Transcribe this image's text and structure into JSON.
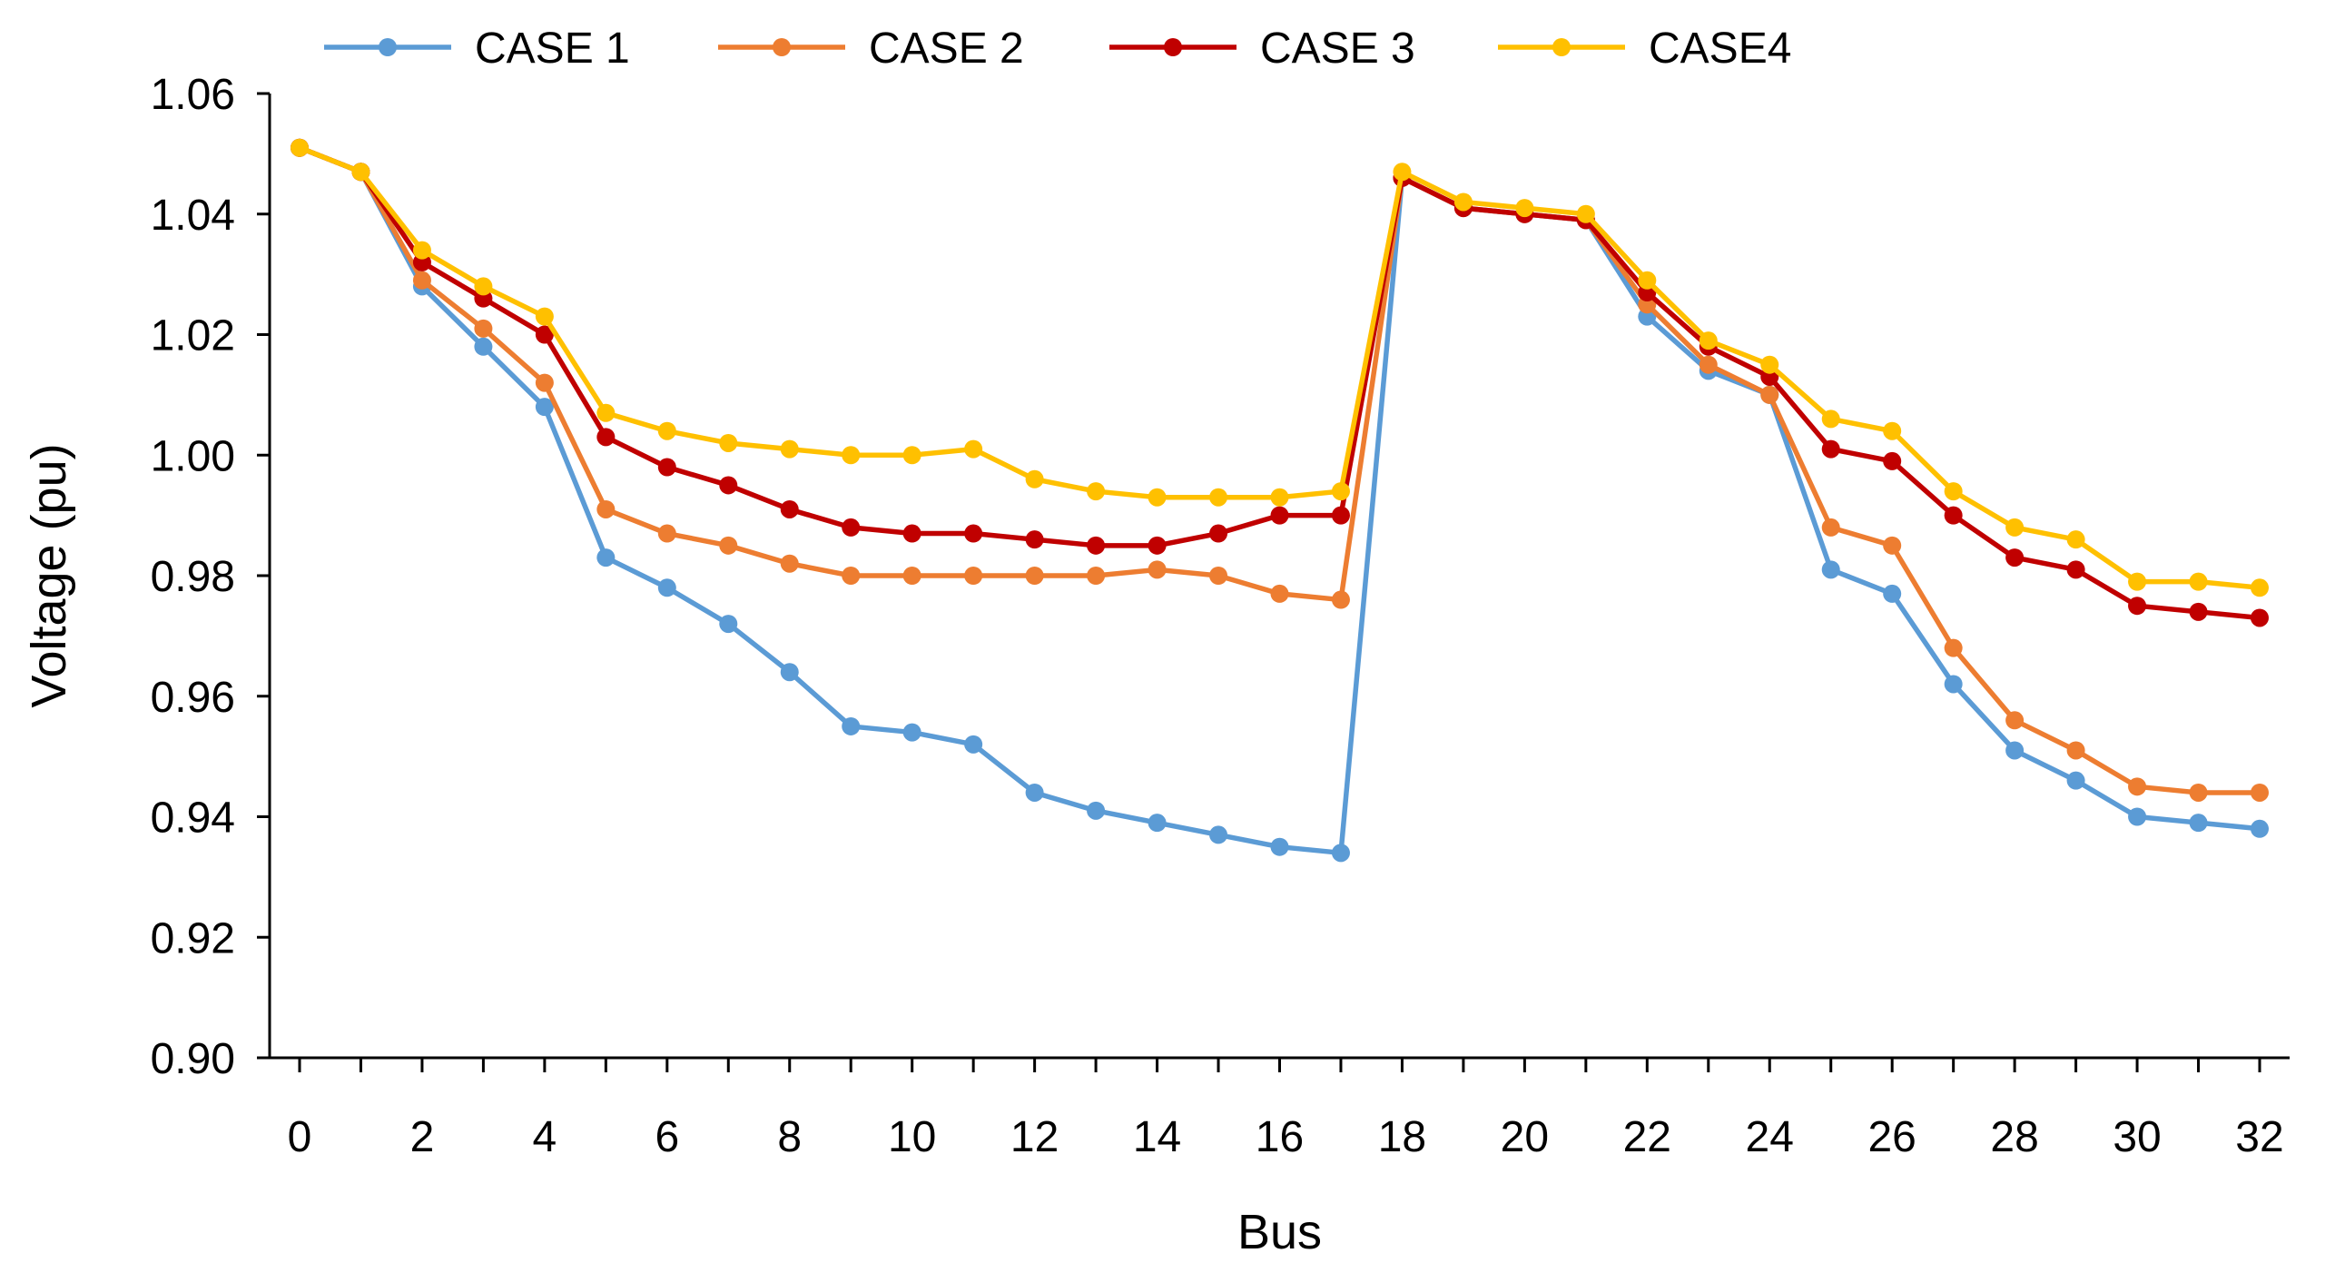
{
  "chart_data": {
    "type": "line",
    "title": "",
    "xlabel": "Bus",
    "ylabel": "Voltage (pu)",
    "xlim": [
      0,
      32
    ],
    "ylim": [
      0.9,
      1.06
    ],
    "xticks": [
      0,
      2,
      4,
      6,
      8,
      10,
      12,
      14,
      16,
      18,
      20,
      22,
      24,
      26,
      28,
      30,
      32
    ],
    "xtick_labels": [
      "0",
      "2",
      "4",
      "6",
      "8",
      "10",
      "12",
      "14",
      "16",
      "18",
      "20",
      "22",
      "24",
      "26",
      "28",
      "30",
      "32"
    ],
    "yticks": [
      0.9,
      0.92,
      0.94,
      0.96,
      0.98,
      1.0,
      1.02,
      1.04,
      1.06
    ],
    "ytick_labels": [
      "0.90",
      "0.92",
      "0.94",
      "0.96",
      "0.98",
      "1.00",
      "1.02",
      "1.04",
      "1.06"
    ],
    "grid": false,
    "legend_position": "top",
    "x": [
      0,
      1,
      2,
      3,
      4,
      5,
      6,
      7,
      8,
      9,
      10,
      11,
      12,
      13,
      14,
      15,
      16,
      17,
      18,
      19,
      20,
      21,
      22,
      23,
      24,
      25,
      26,
      27,
      28,
      29,
      30,
      31,
      32
    ],
    "series": [
      {
        "name": "CASE 1",
        "color": "#5B9BD5",
        "values": [
          1.051,
          1.047,
          1.028,
          1.018,
          1.008,
          0.983,
          0.978,
          0.972,
          0.964,
          0.955,
          0.954,
          0.952,
          0.944,
          0.941,
          0.939,
          0.937,
          0.935,
          0.934,
          1.046,
          1.041,
          1.04,
          1.039,
          1.023,
          1.014,
          1.01,
          0.981,
          0.977,
          0.962,
          0.951,
          0.946,
          0.94,
          0.939,
          0.938
        ]
      },
      {
        "name": "CASE 2",
        "color": "#ED7D31",
        "values": [
          1.051,
          1.047,
          1.029,
          1.021,
          1.012,
          0.991,
          0.987,
          0.985,
          0.982,
          0.98,
          0.98,
          0.98,
          0.98,
          0.98,
          0.981,
          0.98,
          0.977,
          0.976,
          1.046,
          1.041,
          1.04,
          1.039,
          1.025,
          1.015,
          1.01,
          0.988,
          0.985,
          0.968,
          0.956,
          0.951,
          0.945,
          0.944,
          0.944
        ]
      },
      {
        "name": "CASE 3",
        "color": "#C00000",
        "values": [
          1.051,
          1.047,
          1.032,
          1.026,
          1.02,
          1.003,
          0.998,
          0.995,
          0.991,
          0.988,
          0.987,
          0.987,
          0.986,
          0.985,
          0.985,
          0.987,
          0.99,
          0.99,
          1.046,
          1.041,
          1.04,
          1.039,
          1.027,
          1.018,
          1.013,
          1.001,
          0.999,
          0.99,
          0.983,
          0.981,
          0.975,
          0.974,
          0.973
        ]
      },
      {
        "name": "CASE4",
        "color": "#FFC000",
        "values": [
          1.051,
          1.047,
          1.034,
          1.028,
          1.023,
          1.007,
          1.004,
          1.002,
          1.001,
          1.0,
          1.0,
          1.001,
          0.996,
          0.994,
          0.993,
          0.993,
          0.993,
          0.994,
          1.047,
          1.042,
          1.041,
          1.04,
          1.029,
          1.019,
          1.015,
          1.006,
          1.004,
          0.994,
          0.988,
          0.986,
          0.979,
          0.979,
          0.978
        ]
      }
    ]
  }
}
